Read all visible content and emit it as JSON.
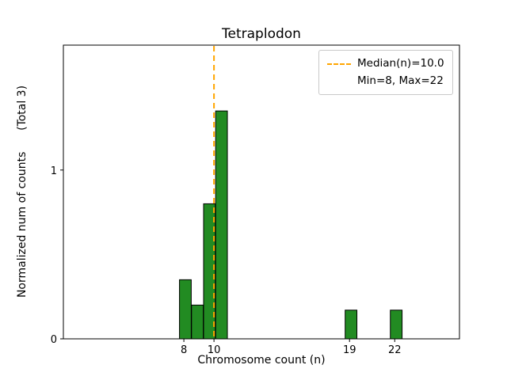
{
  "chart_data": {
    "type": "bar",
    "subtype": "histogram",
    "title": "Tetraplodon",
    "xlabel": "Chromosome count (n)",
    "ylabel": "Normalized num of counts      (Total 3)",
    "total_label": "(Total 3)",
    "bars": [
      {
        "x": 8.1,
        "height": 0.35
      },
      {
        "x": 8.9,
        "height": 0.2
      },
      {
        "x": 9.7,
        "height": 0.8
      },
      {
        "x": 10.5,
        "height": 1.35
      },
      {
        "x": 19.1,
        "height": 0.17
      },
      {
        "x": 22.1,
        "height": 0.17
      }
    ],
    "bar_width": 0.78,
    "bar_color": "#228B22",
    "bar_edge_color": "#000000",
    "median_line": {
      "x": 10.0,
      "color": "#FFA500",
      "style": "dashed",
      "label": "Median(n)=10.0"
    },
    "legend": [
      "Median(n)=10.0",
      "Min=8, Max=22"
    ],
    "legend_position": "upper right",
    "xticks": [
      8,
      10,
      19,
      22
    ],
    "yticks": [
      0,
      1
    ],
    "xlim": [
      0,
      26.3
    ],
    "ylim": [
      0,
      1.74
    ],
    "grid": false
  }
}
